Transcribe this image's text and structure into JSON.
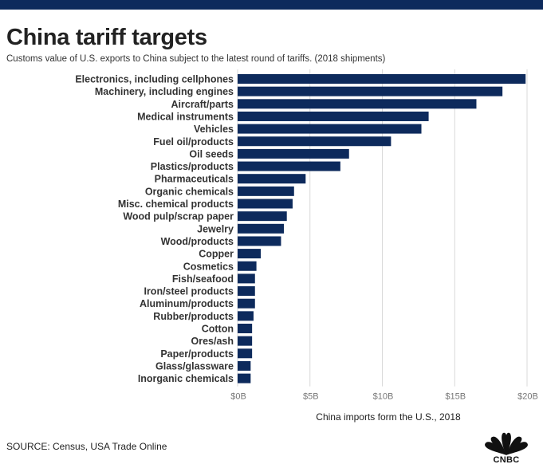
{
  "header": {
    "title": "China tariff targets",
    "subtitle": "Customs value of U.S. exports to China subject to the latest round of tariffs. (2018 shipments)"
  },
  "colors": {
    "bar": "#0d2a5c",
    "topbar": "#0d2a5c",
    "grid": "#d9d9d9"
  },
  "chart_data": {
    "type": "bar",
    "orientation": "horizontal",
    "title": "China tariff targets",
    "subtitle": "Customs value of U.S. exports to China subject to the latest round of tariffs. (2018 shipments)",
    "xlabel": "China imports form the U.S., 2018",
    "ylabel": "",
    "unit": "billion USD",
    "xlim": [
      0,
      20
    ],
    "xticks": [
      0,
      5,
      10,
      15,
      20
    ],
    "xtick_labels": [
      "$0B",
      "$5B",
      "$10B",
      "$15B",
      "$20B"
    ],
    "grid": true,
    "legend": "none",
    "categories": [
      "Electronics, including cellphones",
      "Machinery, including engines",
      "Aircraft/parts",
      "Medical instruments",
      "Vehicles",
      "Fuel oil/products",
      "Oil seeds",
      "Plastics/products",
      "Pharmaceuticals",
      "Organic chemicals",
      "Misc. chemical products",
      "Wood pulp/scrap paper",
      "Jewelry",
      "Wood/products",
      "Copper",
      "Cosmetics",
      "Fish/seafood",
      "Iron/steel products",
      "Aluminum/products",
      "Rubber/products",
      "Cotton",
      "Ores/ash",
      "Paper/products",
      "Glass/glassware",
      "Inorganic chemicals"
    ],
    "values": [
      19.9,
      18.3,
      16.5,
      13.2,
      12.7,
      10.6,
      7.7,
      7.1,
      4.7,
      3.9,
      3.8,
      3.4,
      3.2,
      3.0,
      1.6,
      1.3,
      1.2,
      1.2,
      1.2,
      1.1,
      1.0,
      1.0,
      1.0,
      0.9,
      0.9
    ]
  },
  "footer": {
    "source": "SOURCE: Census, USA Trade Online",
    "logo_text": "CNBC"
  }
}
